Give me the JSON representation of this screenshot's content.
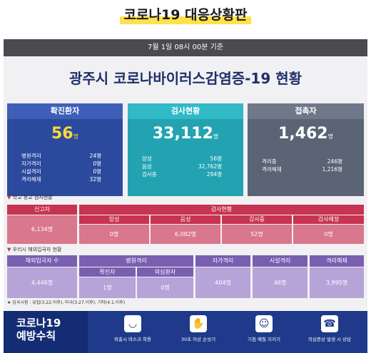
{
  "page_title": "코로나19 대응상황판",
  "header": {
    "timestamp": "7월 1일 08시 00분 기준"
  },
  "main_title": "광주시 코로나바이러스감염증-19 현황",
  "cards": {
    "confirmed": {
      "label": "확진환자",
      "value": "56",
      "unit": "명",
      "rows": [
        {
          "label": "병원격리",
          "value": "24명"
        },
        {
          "label": "자가격리",
          "value": "0명"
        },
        {
          "label": "시설격리",
          "value": "0명"
        },
        {
          "label": "격리해제",
          "value": "32명"
        }
      ]
    },
    "tests": {
      "label": "검사현황",
      "value": "33,112",
      "unit": "명",
      "rows": [
        {
          "label": "양성",
          "value": "56명"
        },
        {
          "label": "음성",
          "value": "32,762명"
        },
        {
          "label": "검사중",
          "value": "294명"
        }
      ]
    },
    "contacts": {
      "label": "접촉자",
      "value": "1,462",
      "unit": "명",
      "rows": [
        {
          "label": "격리중",
          "value": "246명"
        },
        {
          "label": "격리해제",
          "value": "1,216명"
        }
      ]
    }
  },
  "school": {
    "section_label": "학교 등교 검사현황",
    "reporter_label": "신고자",
    "reporter_value": "6,134명",
    "status_label": "검사현황",
    "cols": [
      {
        "label": "양성",
        "value": "0명"
      },
      {
        "label": "음성",
        "value": "6,082명"
      },
      {
        "label": "검사중",
        "value": "52명"
      },
      {
        "label": "검사예정",
        "value": "0명"
      }
    ]
  },
  "overseas": {
    "section_label": "우리시 해외입국자 현황",
    "arrivals_label": "해외입국자 수",
    "arrivals_value": "4,446명",
    "hospital_label": "병원격리",
    "confirmed_label": "확진자",
    "confirmed_value": "1명",
    "suspect_label": "의심환자",
    "suspect_value": "0명",
    "self_label": "자가격리",
    "self_value": "404명",
    "facility_label": "시설격리",
    "facility_value": "46명",
    "released_label": "격리해제",
    "released_value": "3,995명",
    "note": "★ 입국시점 : 유럽(3.22.이후), 미국(3.27.이후), 기타(4.1.이후)"
  },
  "prevention": {
    "title_line1": "코로나19",
    "title_line2": "예방수칙",
    "tips": [
      {
        "icon": "mask-icon",
        "label": "외출시 마스크 착용"
      },
      {
        "icon": "handwash-icon",
        "label": "30초 이상 손씻기"
      },
      {
        "icon": "cough-icon",
        "label": "기침 예절 지키기"
      },
      {
        "icon": "phone-icon",
        "label": "의심증상 발생 시 상담"
      }
    ]
  },
  "colors": {
    "confirmed": "#2b4a9e",
    "tests": "#23a3b2",
    "contacts": "#5a6475",
    "school_pink": "#d9778c",
    "school_crimson": "#c63451",
    "overseas_purple": "#7a5fb0",
    "overseas_light": "#b6a3d8",
    "bottom_navy": "#1f3a8a"
  }
}
